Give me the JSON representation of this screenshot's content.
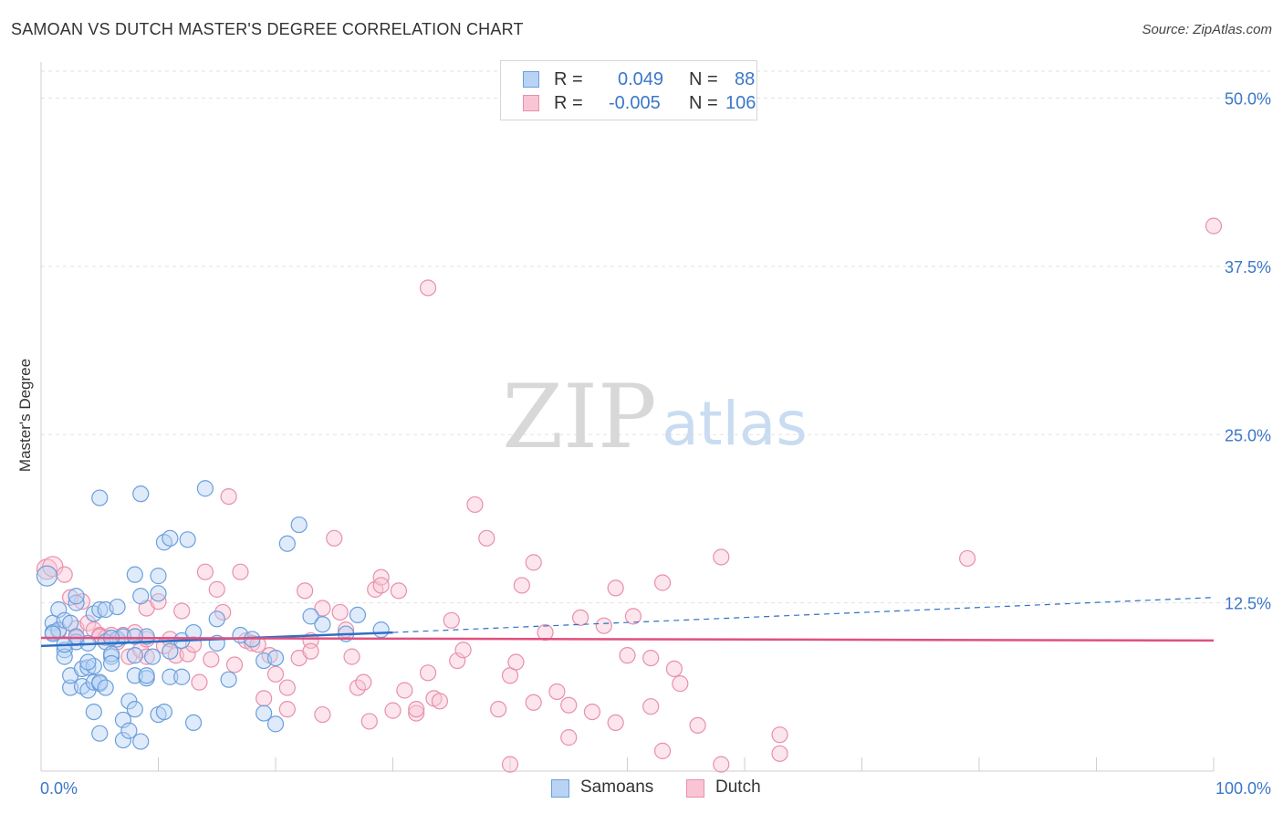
{
  "title": "SAMOAN VS DUTCH MASTER'S DEGREE CORRELATION CHART",
  "source": "Source: ZipAtlas.com",
  "watermark": {
    "zip": "ZIP",
    "atlas": "atlas"
  },
  "legend": {
    "rows": [
      {
        "r_label": "R =",
        "r_value": "0.049",
        "n_label": "N =",
        "n_value": "88",
        "color": "#b9d3f5",
        "border": "#6a9fdc"
      },
      {
        "r_label": "R =",
        "r_value": "-0.005",
        "n_label": "N =",
        "n_value": "106",
        "color": "#f9c5d5",
        "border": "#e890ac"
      }
    ]
  },
  "bottom_legend": [
    {
      "label": "Samoans",
      "color": "#b9d3f5",
      "border": "#6a9fdc"
    },
    {
      "label": "Dutch",
      "color": "#f9c5d5",
      "border": "#e890ac"
    }
  ],
  "chart_data": {
    "type": "scatter",
    "title": "SAMOAN VS DUTCH MASTER'S DEGREE CORRELATION CHART",
    "xlabel": "",
    "ylabel": "Master's Degree",
    "xlim": [
      0,
      100
    ],
    "ylim": [
      0,
      52
    ],
    "x_tick_labels": [
      "0.0%",
      "100.0%"
    ],
    "y_ticks": [
      12.5,
      25.0,
      37.5,
      50.0
    ],
    "y_tick_labels": [
      "12.5%",
      "25.0%",
      "37.5%",
      "50.0%"
    ],
    "grid": true,
    "colors": {
      "samoans": "#6a9fdc",
      "dutch": "#e890ac",
      "samoans_line": "#2f6fc4",
      "dutch_line": "#e0507e",
      "axis_text": "#3b77c9"
    },
    "series": [
      {
        "name": "Samoans",
        "trend": {
          "x0": 0,
          "y0": 9.3,
          "x1": 30,
          "y1": 10.3,
          "dash_x1": 100,
          "dash_y1": 12.9
        },
        "points": [
          [
            0.5,
            14.5
          ],
          [
            1,
            11
          ],
          [
            1,
            10.3
          ],
          [
            1.5,
            12
          ],
          [
            1.5,
            10.5
          ],
          [
            2,
            11.2
          ],
          [
            2,
            9
          ],
          [
            2,
            8.5
          ],
          [
            2.5,
            6.2
          ],
          [
            2.5,
            7.1
          ],
          [
            2.5,
            11
          ],
          [
            3,
            9.6
          ],
          [
            3,
            12.5
          ],
          [
            3,
            13
          ],
          [
            3.5,
            7.6
          ],
          [
            3.5,
            6.3
          ],
          [
            4,
            6
          ],
          [
            4,
            7.7
          ],
          [
            4,
            9.5
          ],
          [
            4.5,
            11.7
          ],
          [
            4.5,
            6.6
          ],
          [
            4.5,
            7.8
          ],
          [
            4.5,
            4.4
          ],
          [
            5,
            6.5
          ],
          [
            5,
            6.6
          ],
          [
            5,
            2.8
          ],
          [
            5,
            12
          ],
          [
            5,
            20.3
          ],
          [
            5.5,
            12
          ],
          [
            5.5,
            9.6
          ],
          [
            5.5,
            6.2
          ],
          [
            6,
            8.5
          ],
          [
            6,
            8.7
          ],
          [
            6,
            8
          ],
          [
            6.5,
            12.2
          ],
          [
            6.5,
            9.8
          ],
          [
            7,
            3.8
          ],
          [
            7,
            2.3
          ],
          [
            7,
            10
          ],
          [
            7.5,
            5.2
          ],
          [
            7.5,
            3
          ],
          [
            8,
            4.6
          ],
          [
            8,
            7.1
          ],
          [
            8,
            14.6
          ],
          [
            8,
            8.6
          ],
          [
            8.5,
            2.2
          ],
          [
            8.5,
            20.6
          ],
          [
            8.5,
            13
          ],
          [
            9,
            6.9
          ],
          [
            9,
            7.1
          ],
          [
            9,
            10
          ],
          [
            9.5,
            8.5
          ],
          [
            10,
            14.5
          ],
          [
            10,
            13.2
          ],
          [
            10,
            4.2
          ],
          [
            10.5,
            4.4
          ],
          [
            10.5,
            17
          ],
          [
            11,
            7
          ],
          [
            11,
            17.3
          ],
          [
            12,
            7
          ],
          [
            12.5,
            17.2
          ],
          [
            13,
            3.6
          ],
          [
            14,
            21
          ],
          [
            15,
            11.3
          ],
          [
            16,
            6.8
          ],
          [
            19,
            4.3
          ],
          [
            19,
            8.2
          ],
          [
            20,
            8.4
          ],
          [
            20,
            3.5
          ],
          [
            21,
            16.9
          ],
          [
            22,
            18.3
          ],
          [
            23,
            11.5
          ],
          [
            27,
            11.6
          ],
          [
            1,
            10.2
          ],
          [
            2,
            9.4
          ],
          [
            3,
            10
          ],
          [
            4,
            8.1
          ],
          [
            6,
            9.9
          ],
          [
            8,
            10
          ],
          [
            11,
            8.9
          ],
          [
            12,
            9.7
          ],
          [
            13,
            10.3
          ],
          [
            15,
            9.5
          ],
          [
            17,
            10.1
          ],
          [
            18,
            9.8
          ],
          [
            24,
            10.9
          ],
          [
            26,
            10.2
          ],
          [
            29,
            10.5
          ]
        ]
      },
      {
        "name": "Dutch",
        "trend": {
          "x0": 0,
          "y0": 9.9,
          "x1": 100,
          "y1": 9.7
        },
        "points": [
          [
            0.5,
            15
          ],
          [
            1,
            15.2
          ],
          [
            2,
            14.6
          ],
          [
            2.5,
            12.9
          ],
          [
            3,
            10.6
          ],
          [
            3.5,
            12.6
          ],
          [
            4,
            11
          ],
          [
            4.5,
            10.5
          ],
          [
            5,
            10.1
          ],
          [
            5.5,
            9.9
          ],
          [
            6,
            10.1
          ],
          [
            6.5,
            9.6
          ],
          [
            7,
            10.1
          ],
          [
            7.5,
            8.5
          ],
          [
            8,
            10.3
          ],
          [
            8.5,
            9
          ],
          [
            9,
            12.1
          ],
          [
            9,
            8.5
          ],
          [
            10,
            12.6
          ],
          [
            10.5,
            9.3
          ],
          [
            11,
            9.8
          ],
          [
            11.5,
            8.6
          ],
          [
            12,
            11.9
          ],
          [
            12.5,
            8.7
          ],
          [
            13,
            9.4
          ],
          [
            13.5,
            6.6
          ],
          [
            14,
            14.8
          ],
          [
            14.5,
            8.3
          ],
          [
            15,
            13.5
          ],
          [
            15.5,
            11.8
          ],
          [
            16,
            20.4
          ],
          [
            16.5,
            7.9
          ],
          [
            17,
            14.8
          ],
          [
            17.5,
            9.7
          ],
          [
            18,
            9.5
          ],
          [
            18.5,
            9.4
          ],
          [
            19,
            5.4
          ],
          [
            19.5,
            8.6
          ],
          [
            20,
            7.2
          ],
          [
            21,
            6.2
          ],
          [
            21,
            4.6
          ],
          [
            22,
            8.4
          ],
          [
            22.5,
            13.4
          ],
          [
            23,
            9.7
          ],
          [
            23,
            8.9
          ],
          [
            24,
            12.1
          ],
          [
            24,
            4.2
          ],
          [
            25,
            17.3
          ],
          [
            25.5,
            11.8
          ],
          [
            26,
            10.5
          ],
          [
            26.5,
            8.5
          ],
          [
            27,
            6.2
          ],
          [
            27.5,
            6.6
          ],
          [
            28,
            3.7
          ],
          [
            28.5,
            13.5
          ],
          [
            29,
            14.4
          ],
          [
            29,
            13.8
          ],
          [
            30,
            4.5
          ],
          [
            30.5,
            13.4
          ],
          [
            31,
            6
          ],
          [
            32,
            4.3
          ],
          [
            32,
            4.6
          ],
          [
            33,
            35.9
          ],
          [
            33,
            7.3
          ],
          [
            33.5,
            5.4
          ],
          [
            34,
            5.2
          ],
          [
            35,
            11.2
          ],
          [
            35.5,
            8.2
          ],
          [
            36,
            9
          ],
          [
            37,
            19.8
          ],
          [
            38,
            17.3
          ],
          [
            39,
            4.6
          ],
          [
            40,
            0.5
          ],
          [
            40,
            7.1
          ],
          [
            40.5,
            8.1
          ],
          [
            41,
            13.8
          ],
          [
            42,
            5.1
          ],
          [
            42,
            15.5
          ],
          [
            43,
            10.3
          ],
          [
            44,
            5.9
          ],
          [
            45,
            2.5
          ],
          [
            45,
            4.9
          ],
          [
            46,
            11.4
          ],
          [
            47,
            4.4
          ],
          [
            48,
            10.8
          ],
          [
            49,
            3.6
          ],
          [
            49,
            13.6
          ],
          [
            50,
            8.6
          ],
          [
            50.5,
            11.5
          ],
          [
            52,
            4.8
          ],
          [
            52,
            8.4
          ],
          [
            53,
            14
          ],
          [
            53,
            1.5
          ],
          [
            54,
            7.6
          ],
          [
            54.5,
            6.5
          ],
          [
            56,
            3.4
          ],
          [
            58,
            15.9
          ],
          [
            58,
            0.5
          ],
          [
            63,
            2.7
          ],
          [
            63,
            1.3
          ],
          [
            79,
            15.8
          ],
          [
            100,
            40.5
          ],
          [
            1.5,
            10.4
          ],
          [
            3,
            9.9
          ],
          [
            5,
            10
          ],
          [
            9,
            9.8
          ]
        ]
      }
    ]
  }
}
